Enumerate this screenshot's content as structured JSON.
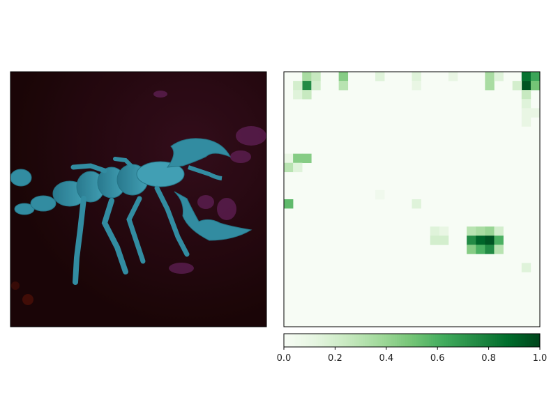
{
  "figure": {
    "background": "#ffffff"
  },
  "image_panel": {
    "content": "photo of a fluorescing scorpion under UV light on dark ground",
    "colors": {
      "background": "#2a0a0c",
      "scorpion": "#3aa0b8",
      "scorpion_highlight": "#56c4d8",
      "foliage": "#7a2a6a"
    }
  },
  "chart_data": {
    "type": "heatmap",
    "colormap": "Greens",
    "colormap_stops": [
      "#f7fcf5",
      "#e5f5e0",
      "#c7e9c0",
      "#a1d99b",
      "#74c476",
      "#41ab5d",
      "#238b45",
      "#006d2c",
      "#00441b"
    ],
    "grid_size": [
      28,
      28
    ],
    "cells": [
      [
        0,
        2,
        0.35
      ],
      [
        0,
        3,
        0.25
      ],
      [
        1,
        2,
        0.75
      ],
      [
        1,
        3,
        0.2
      ],
      [
        1,
        1,
        0.2
      ],
      [
        2,
        1,
        0.15
      ],
      [
        2,
        2,
        0.25
      ],
      [
        0,
        6,
        0.45
      ],
      [
        1,
        6,
        0.3
      ],
      [
        0,
        10,
        0.15
      ],
      [
        0,
        14,
        0.15
      ],
      [
        1,
        14,
        0.1
      ],
      [
        0,
        18,
        0.1
      ],
      [
        0,
        22,
        0.35
      ],
      [
        1,
        22,
        0.35
      ],
      [
        0,
        23,
        0.15
      ],
      [
        0,
        26,
        0.85
      ],
      [
        0,
        27,
        0.65
      ],
      [
        1,
        26,
        0.95
      ],
      [
        1,
        27,
        0.5
      ],
      [
        1,
        25,
        0.2
      ],
      [
        2,
        26,
        0.25
      ],
      [
        3,
        26,
        0.15
      ],
      [
        4,
        26,
        0.1
      ],
      [
        4,
        27,
        0.1
      ],
      [
        5,
        26,
        0.1
      ],
      [
        9,
        0,
        0.1
      ],
      [
        9,
        1,
        0.45
      ],
      [
        9,
        2,
        0.45
      ],
      [
        10,
        0,
        0.3
      ],
      [
        10,
        1,
        0.15
      ],
      [
        13,
        10,
        0.05
      ],
      [
        14,
        0,
        0.55
      ],
      [
        14,
        14,
        0.15
      ],
      [
        17,
        16,
        0.15
      ],
      [
        17,
        17,
        0.1
      ],
      [
        17,
        20,
        0.3
      ],
      [
        17,
        21,
        0.35
      ],
      [
        17,
        22,
        0.4
      ],
      [
        17,
        23,
        0.2
      ],
      [
        18,
        16,
        0.2
      ],
      [
        18,
        17,
        0.2
      ],
      [
        18,
        20,
        0.75
      ],
      [
        18,
        21,
        0.9
      ],
      [
        18,
        22,
        0.95
      ],
      [
        18,
        23,
        0.6
      ],
      [
        19,
        20,
        0.45
      ],
      [
        19,
        21,
        0.6
      ],
      [
        19,
        22,
        0.75
      ],
      [
        19,
        23,
        0.3
      ],
      [
        21,
        26,
        0.15
      ]
    ],
    "colorbar": {
      "range": [
        0.0,
        1.0
      ],
      "orientation": "horizontal",
      "ticks": [
        "0.0",
        "0.2",
        "0.4",
        "0.6",
        "0.8",
        "1.0"
      ]
    }
  }
}
